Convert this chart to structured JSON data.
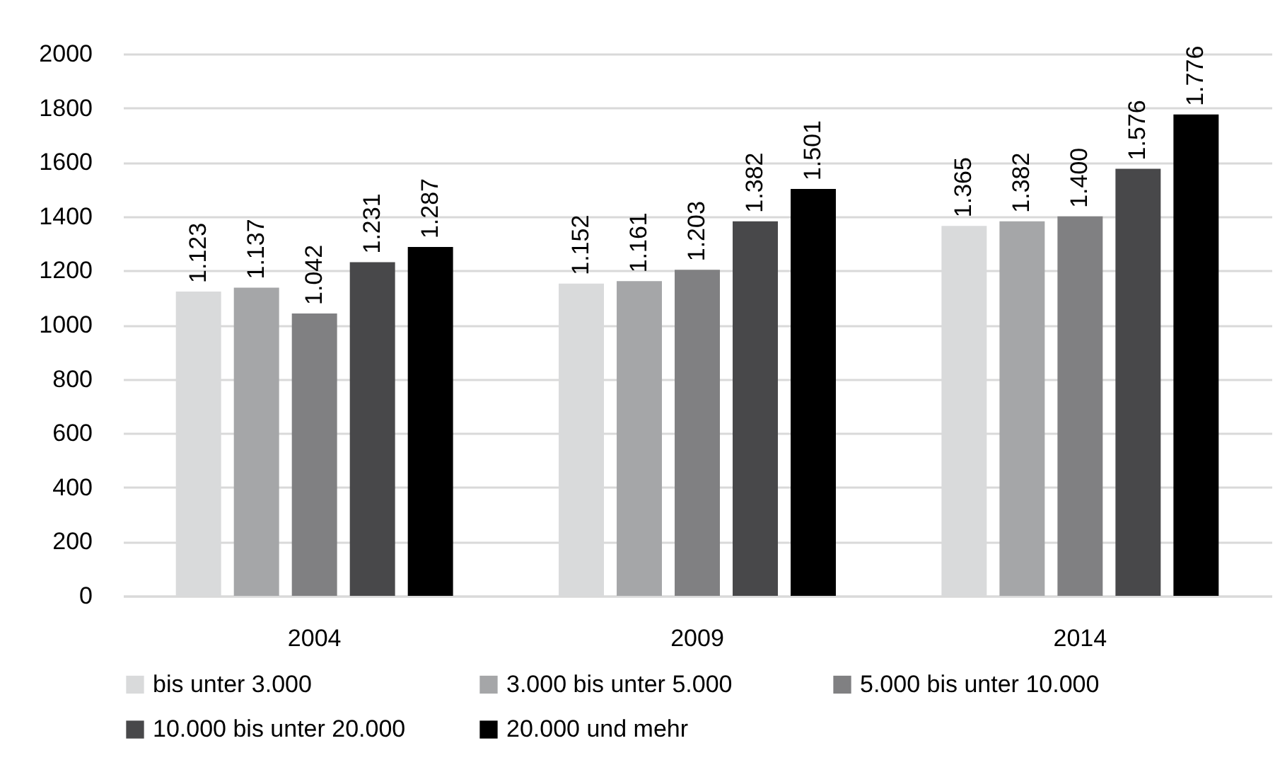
{
  "chart_data": {
    "type": "bar",
    "categories": [
      "2004",
      "2009",
      "2014"
    ],
    "series": [
      {
        "name": "bis unter 3.000",
        "color": "#d9dadb",
        "values": [
          1123,
          1152,
          1365
        ],
        "value_labels": [
          "1.123",
          "1.152",
          "1.365"
        ]
      },
      {
        "name": "3.000 bis unter 5.000",
        "color": "#a5a6a8",
        "values": [
          1137,
          1161,
          1382
        ],
        "value_labels": [
          "1.137",
          "1.161",
          "1.382"
        ]
      },
      {
        "name": "5.000 bis unter 10.000",
        "color": "#808082",
        "values": [
          1042,
          1203,
          1400
        ],
        "value_labels": [
          "1.042",
          "1.203",
          "1.400"
        ]
      },
      {
        "name": "10.000 bis unter 20.000",
        "color": "#48484a",
        "values": [
          1231,
          1382,
          1576
        ],
        "value_labels": [
          "1.231",
          "1.382",
          "1.576"
        ]
      },
      {
        "name": "20.000 und mehr",
        "color": "#000000",
        "values": [
          1287,
          1501,
          1776
        ],
        "value_labels": [
          "1.287",
          "1.501",
          "1.776"
        ]
      }
    ],
    "ylim": [
      0,
      2000
    ],
    "yticks": [
      0,
      200,
      400,
      600,
      800,
      1000,
      1200,
      1400,
      1600,
      1800,
      2000
    ],
    "grid": "y",
    "legend": "bottom"
  }
}
